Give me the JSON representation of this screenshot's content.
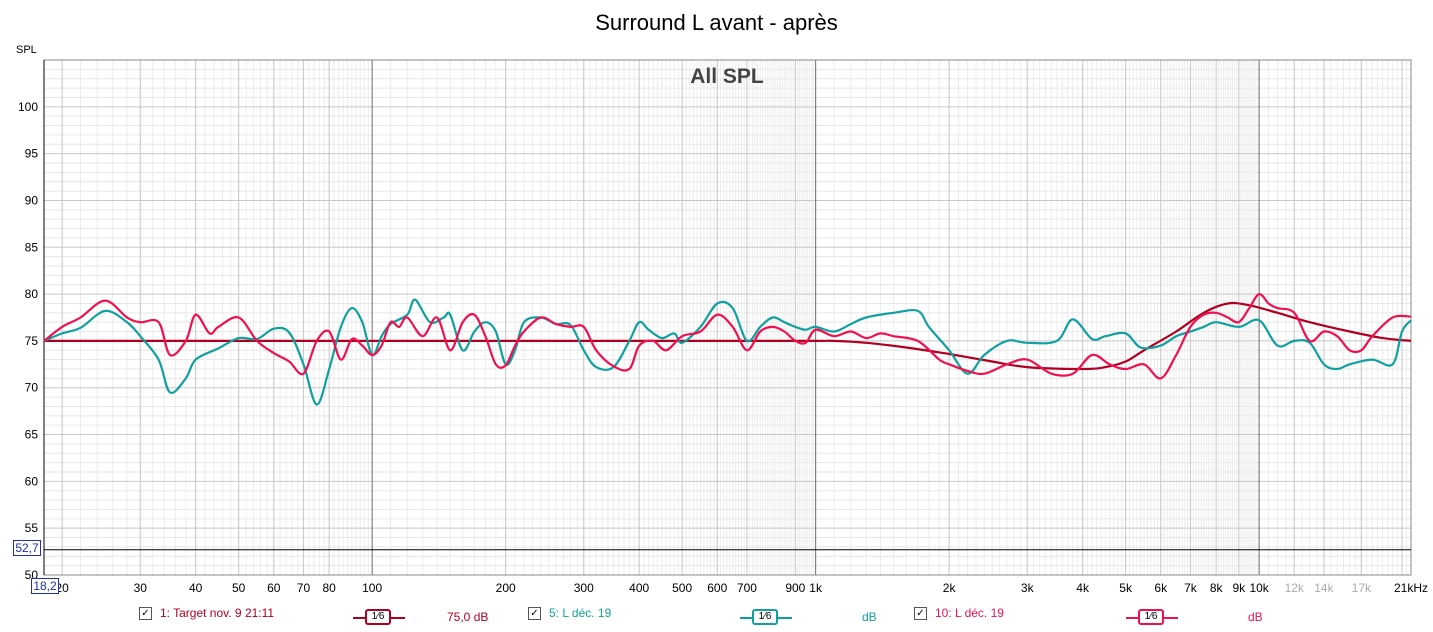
{
  "chart_data": {
    "type": "line",
    "title": "Surround L avant - après",
    "annotation": "All SPL",
    "ylabel": "SPL",
    "xunit": "kHz",
    "xscale": "log",
    "xlim": [
      18.2,
      22000
    ],
    "ylim": [
      50,
      105
    ],
    "grid": true,
    "y_ticks": [
      50,
      55,
      60,
      65,
      70,
      75,
      80,
      85,
      90,
      95,
      100
    ],
    "x_ticks": [
      {
        "v": 20,
        "label": "20"
      },
      {
        "v": 30,
        "label": "30"
      },
      {
        "v": 40,
        "label": "40"
      },
      {
        "v": 50,
        "label": "50"
      },
      {
        "v": 60,
        "label": "60"
      },
      {
        "v": 70,
        "label": "70"
      },
      {
        "v": 80,
        "label": "80"
      },
      {
        "v": 100,
        "label": "100"
      },
      {
        "v": 200,
        "label": "200"
      },
      {
        "v": 300,
        "label": "300"
      },
      {
        "v": 400,
        "label": "400"
      },
      {
        "v": 500,
        "label": "500"
      },
      {
        "v": 600,
        "label": "600"
      },
      {
        "v": 700,
        "label": "700"
      },
      {
        "v": 900,
        "label": "900"
      },
      {
        "v": 1000,
        "label": "1k"
      },
      {
        "v": 2000,
        "label": "2k"
      },
      {
        "v": 3000,
        "label": "3k"
      },
      {
        "v": 4000,
        "label": "4k"
      },
      {
        "v": 5000,
        "label": "5k"
      },
      {
        "v": 6000,
        "label": "6k"
      },
      {
        "v": 7000,
        "label": "7k"
      },
      {
        "v": 8000,
        "label": "8k"
      },
      {
        "v": 9000,
        "label": "9k"
      },
      {
        "v": 10000,
        "label": "10k"
      },
      {
        "v": 12000,
        "label": "12k",
        "muted": true
      },
      {
        "v": 14000,
        "label": "14k",
        "muted": true
      },
      {
        "v": 17000,
        "label": "17k",
        "muted": true
      },
      {
        "v": 21000,
        "label": "21kHz"
      }
    ],
    "cursor": {
      "y": 52.7,
      "y_label": "52,7",
      "x_label": "18,2"
    },
    "series": [
      {
        "name": "1: Target nov. 9 21:11",
        "color": "#b00020",
        "x": [
          18.2,
          700,
          1000,
          1100,
          1300,
          1600,
          2000,
          2500,
          3000,
          4000,
          4500,
          5000,
          5500,
          6500,
          7500,
          8500,
          9500,
          11000,
          13000,
          16000,
          19000,
          22000
        ],
        "y": [
          75,
          75,
          75,
          75,
          74.8,
          74.3,
          73.6,
          72.8,
          72.2,
          72.0,
          72.2,
          72.8,
          74.0,
          76.0,
          78.0,
          79.0,
          78.8,
          78.0,
          77.0,
          76.0,
          75.3,
          75.0
        ]
      },
      {
        "name": "5: L déc. 19",
        "color": "#10a0a0",
        "x": [
          18.2,
          20,
          22,
          25,
          28,
          30,
          33,
          35,
          38,
          40,
          45,
          50,
          55,
          60,
          65,
          70,
          75,
          80,
          85,
          90,
          95,
          100,
          105,
          110,
          120,
          125,
          135,
          145,
          150,
          160,
          170,
          180,
          190,
          200,
          210,
          220,
          240,
          260,
          280,
          300,
          320,
          350,
          380,
          400,
          420,
          450,
          480,
          500,
          550,
          600,
          650,
          700,
          750,
          800,
          850,
          900,
          950,
          1000,
          1100,
          1200,
          1300,
          1500,
          1700,
          1800,
          2000,
          2200,
          2400,
          2700,
          3000,
          3500,
          3800,
          4200,
          4500,
          5000,
          5400,
          6000,
          6500,
          7000,
          7500,
          8000,
          9000,
          10000,
          11000,
          12000,
          13000,
          14000,
          15000,
          16000,
          18000,
          20000,
          21000,
          22000
        ],
        "y": [
          75,
          75.8,
          76.4,
          78.2,
          77,
          75.5,
          73,
          69.5,
          71,
          73,
          74.2,
          75.3,
          75.2,
          76.3,
          75.9,
          72.5,
          68.2,
          72,
          76.5,
          78.5,
          77,
          73.5,
          75.5,
          76.8,
          77.8,
          79.4,
          77,
          77.5,
          77.8,
          74,
          76,
          77,
          76,
          72.5,
          74,
          77,
          77.5,
          76.8,
          76.7,
          74,
          72.2,
          72.2,
          75,
          77,
          76.2,
          75.3,
          75.8,
          74.8,
          76.5,
          79,
          78.5,
          75,
          76.5,
          77.5,
          77,
          76.5,
          76.2,
          76.5,
          76,
          76.8,
          77.5,
          78,
          78.2,
          76.5,
          74,
          71.5,
          73.5,
          75,
          74.8,
          75,
          77.3,
          75.2,
          75.5,
          75.8,
          74.3,
          74.5,
          75.5,
          76,
          76.5,
          77,
          76.5,
          77.2,
          74.5,
          75,
          74.8,
          72.5,
          72,
          72.5,
          73,
          72.5,
          76,
          77.2
        ]
      },
      {
        "name": "10: L déc. 19",
        "color": "#f01050",
        "x": [
          18.2,
          20,
          22,
          25,
          28,
          30,
          33,
          35,
          38,
          40,
          43,
          45,
          50,
          55,
          60,
          65,
          70,
          75,
          80,
          85,
          90,
          95,
          100,
          105,
          110,
          115,
          120,
          130,
          140,
          150,
          160,
          170,
          180,
          190,
          200,
          210,
          220,
          240,
          260,
          280,
          300,
          320,
          350,
          380,
          400,
          430,
          460,
          500,
          550,
          600,
          650,
          700,
          750,
          800,
          850,
          900,
          950,
          1000,
          1100,
          1200,
          1300,
          1400,
          1500,
          1700,
          1900,
          2000,
          2200,
          2400,
          2700,
          3000,
          3400,
          3800,
          4200,
          4600,
          5000,
          5500,
          6000,
          6500,
          7000,
          7500,
          8000,
          8500,
          9000,
          9500,
          10000,
          10500,
          11000,
          12000,
          13000,
          14000,
          15000,
          16000,
          17000,
          18000,
          20000,
          22000
        ],
        "y": [
          75,
          76.5,
          77.5,
          79.3,
          77.5,
          77,
          77,
          73.5,
          75,
          77.8,
          75.8,
          76.5,
          77.5,
          75,
          73.7,
          72.8,
          71.5,
          75,
          76,
          73,
          75.2,
          74.5,
          73.5,
          74.5,
          77,
          76.5,
          77.5,
          75.5,
          77.5,
          74,
          77,
          77.8,
          75.5,
          72.5,
          72.4,
          74.5,
          76,
          77.5,
          76.8,
          76.5,
          76.5,
          74,
          72.3,
          72,
          74.5,
          75,
          74,
          75.5,
          76,
          77.8,
          76.5,
          74,
          76,
          76.5,
          76,
          75,
          74.8,
          76.2,
          75.5,
          76,
          75.3,
          75.8,
          75.5,
          75,
          73,
          72.5,
          71.8,
          71.5,
          72.5,
          73,
          71.5,
          71.5,
          73.5,
          72.5,
          72,
          72.5,
          71,
          73.5,
          76.5,
          77.8,
          78,
          77.5,
          77,
          78.5,
          80,
          79,
          78.5,
          78,
          75,
          76,
          75.5,
          74,
          74,
          75.5,
          77.5,
          77.6
        ]
      }
    ]
  },
  "legend": [
    {
      "label": "1: Target nov. 9 21:11",
      "color": "#b00020",
      "smoothing": "1⁄6",
      "value": "75,0 dB",
      "checked": "✓"
    },
    {
      "label": "5: L déc. 19",
      "color": "#10a0a0",
      "smoothing": "1⁄6",
      "value": "dB",
      "checked": "✓"
    },
    {
      "label": "10: L déc. 19",
      "color": "#f01050",
      "smoothing": "1⁄6",
      "value": "dB",
      "checked": "✓"
    }
  ]
}
